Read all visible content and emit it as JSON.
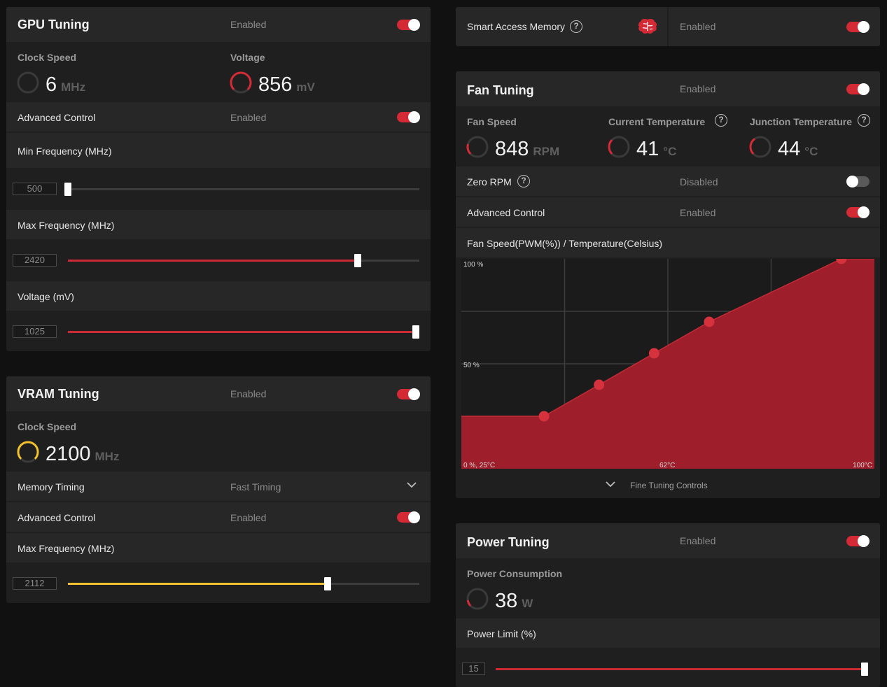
{
  "gpu_tuning": {
    "title": "GPU Tuning",
    "status": "Enabled",
    "clock_speed": {
      "label": "Clock Speed",
      "value": "6",
      "unit": "MHz"
    },
    "voltage": {
      "label": "Voltage",
      "value": "856",
      "unit": "mV"
    },
    "advanced_control": {
      "label": "Advanced Control",
      "status": "Enabled"
    },
    "min_frequency": {
      "label": "Min Frequency (MHz)",
      "value": "500",
      "fraction": 0.0
    },
    "max_frequency": {
      "label": "Max Frequency (MHz)",
      "value": "2420",
      "fraction": 0.825
    },
    "voltage_slider": {
      "label": "Voltage (mV)",
      "value": "1025",
      "fraction": 0.99
    }
  },
  "vram_tuning": {
    "title": "VRAM Tuning",
    "status": "Enabled",
    "clock_speed": {
      "label": "Clock Speed",
      "value": "2100",
      "unit": "MHz"
    },
    "memory_timing": {
      "label": "Memory Timing",
      "value": "Fast Timing"
    },
    "advanced_control": {
      "label": "Advanced Control",
      "status": "Enabled"
    },
    "max_frequency": {
      "label": "Max Frequency (MHz)",
      "value": "2112",
      "fraction": 0.74
    }
  },
  "smart_access_memory": {
    "label": "Smart Access Memory",
    "status": "Enabled",
    "icon": "brain-icon"
  },
  "fan_tuning": {
    "title": "Fan Tuning",
    "status": "Enabled",
    "fan_speed": {
      "label": "Fan Speed",
      "value": "848",
      "unit": "RPM"
    },
    "current_temperature": {
      "label": "Current Temperature",
      "value": "41",
      "unit": "°C"
    },
    "junction_temperature": {
      "label": "Junction Temperature",
      "value": "44",
      "unit": "°C"
    },
    "zero_rpm": {
      "label": "Zero RPM",
      "status": "Disabled"
    },
    "advanced_control": {
      "label": "Advanced Control",
      "status": "Enabled"
    },
    "chart_title": "Fan Speed(PWM(%)) / Temperature(Celsius)",
    "fine_tuning": "Fine Tuning Controls"
  },
  "chart_data": {
    "type": "area",
    "title": "Fan Speed(PWM(%)) / Temperature(Celsius)",
    "y_tick_labels": [
      "100 %",
      "50 %"
    ],
    "x_tick_labels": [
      "0 %, 25°C",
      "62°C",
      "100°C"
    ],
    "xlim": [
      25,
      100
    ],
    "ylim": [
      0,
      100
    ],
    "grid": true,
    "color": "#9e1f2b",
    "series": [
      {
        "x": [
          25,
          40,
          50,
          60,
          70,
          94,
          100
        ],
        "y": [
          25,
          25,
          40,
          55,
          70,
          100,
          100
        ],
        "markers": [
          40,
          50,
          60,
          70,
          94
        ]
      }
    ]
  },
  "power_tuning": {
    "title": "Power Tuning",
    "status": "Enabled",
    "power_consumption": {
      "label": "Power Consumption",
      "value": "38",
      "unit": "W"
    },
    "power_limit": {
      "label": "Power Limit (%)",
      "value": "15",
      "fraction": 1.0
    }
  },
  "colors": {
    "accent_red": "#d32a35",
    "accent_yellow": "#f2c12e",
    "panel": "#1f1f1f",
    "row": "#272727"
  }
}
